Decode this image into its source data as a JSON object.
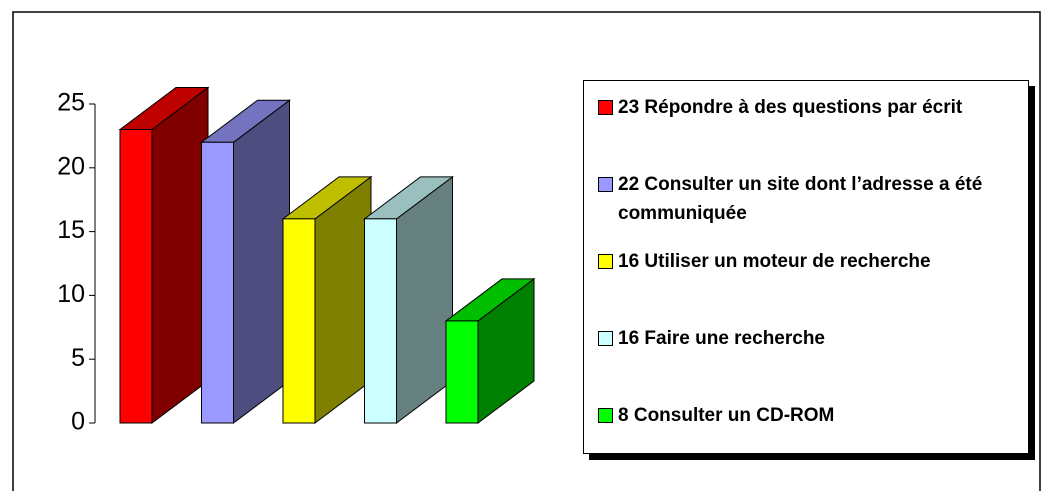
{
  "chart_data": {
    "type": "bar3d",
    "series": [
      {
        "name": "23 Répondre à des questions par écrit",
        "color": "#ff0000",
        "values": [
          23
        ]
      },
      {
        "name": "22 Consulter un site dont l’adresse a été communiquée",
        "color": "#9999ff",
        "values": [
          22
        ]
      },
      {
        "name": "16 Utiliser un moteur de recherche",
        "color": "#ffff00",
        "values": [
          16
        ]
      },
      {
        "name": "16 Faire une recherche",
        "color": "#ccffff",
        "values": [
          16
        ]
      },
      {
        "name": "8 Consulter un CD-ROM",
        "color": "#00ff00",
        "values": [
          8
        ]
      }
    ],
    "ylim": [
      0,
      25
    ],
    "yticks": [
      0,
      5,
      10,
      15,
      20,
      25
    ],
    "legend": "right"
  }
}
